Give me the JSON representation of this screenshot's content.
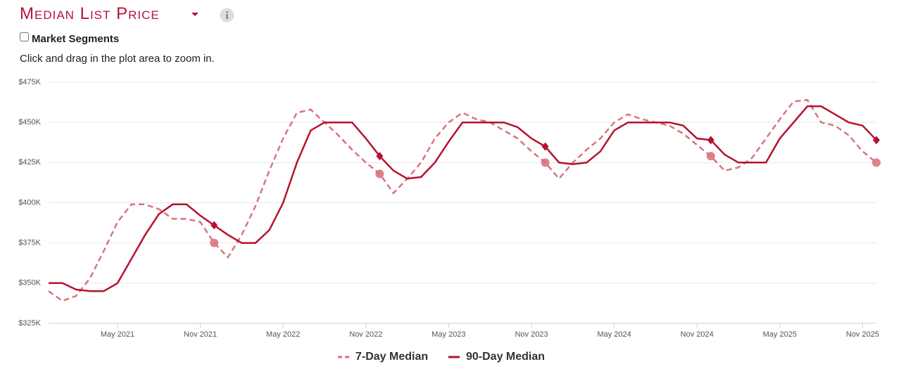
{
  "header": {
    "title": "Median List Price",
    "checkbox_label": "Market Segments",
    "hint": "Click and drag in the plot area to zoom in."
  },
  "chart_data": {
    "type": "line",
    "x": [
      "2020-12",
      "2021-01",
      "2021-02",
      "2021-03",
      "2021-04",
      "2021-05",
      "2021-06",
      "2021-07",
      "2021-08",
      "2021-09",
      "2021-10",
      "2021-11",
      "2021-12",
      "2022-01",
      "2022-02",
      "2022-03",
      "2022-04",
      "2022-05",
      "2022-06",
      "2022-07",
      "2022-08",
      "2022-09",
      "2022-10",
      "2022-11",
      "2022-12",
      "2023-01",
      "2023-02",
      "2023-03",
      "2023-04",
      "2023-05",
      "2023-06",
      "2023-07",
      "2023-08",
      "2023-09",
      "2023-10",
      "2023-11",
      "2023-12",
      "2024-01",
      "2024-02",
      "2024-03",
      "2024-04",
      "2024-05",
      "2024-06",
      "2024-07",
      "2024-08",
      "2024-09",
      "2024-10",
      "2024-11",
      "2024-12",
      "2025-01",
      "2025-02",
      "2025-03",
      "2025-04",
      "2025-05",
      "2025-06",
      "2025-07",
      "2025-08",
      "2025-09",
      "2025-10",
      "2025-11",
      "2025-12"
    ],
    "series": [
      {
        "name": "7-Day Median",
        "color": "#d9737e",
        "dashed": true,
        "marker": "circle",
        "values": [
          345,
          339,
          342,
          353,
          370,
          388,
          399,
          399,
          396,
          390,
          390,
          388,
          375,
          366,
          380,
          398,
          420,
          440,
          456,
          458,
          450,
          442,
          433,
          425,
          418,
          406,
          415,
          425,
          440,
          450,
          456,
          452,
          450,
          445,
          440,
          432,
          425,
          415,
          425,
          433,
          440,
          450,
          455,
          452,
          450,
          448,
          443,
          436,
          429,
          420,
          422,
          428,
          440,
          452,
          463,
          464,
          450,
          448,
          442,
          432,
          425
        ]
      },
      {
        "name": "90-Day Median",
        "color": "#b5122e",
        "dashed": false,
        "marker": "diamond",
        "values": [
          350,
          350,
          346,
          345,
          345,
          350,
          365,
          380,
          393,
          399,
          399,
          392,
          386,
          380,
          375,
          375,
          383,
          400,
          425,
          445,
          450,
          450,
          450,
          440,
          429,
          420,
          415,
          416,
          425,
          438,
          450,
          450,
          450,
          450,
          447,
          440,
          435,
          425,
          424,
          425,
          432,
          445,
          450,
          450,
          450,
          450,
          448,
          440,
          439,
          430,
          425,
          425,
          425,
          440,
          450,
          460,
          460,
          455,
          450,
          448,
          439
        ]
      }
    ],
    "xlim": [
      "2020-12",
      "2025-12"
    ],
    "xticks": [
      {
        "value": "2021-05",
        "label": "May 2021"
      },
      {
        "value": "2021-11",
        "label": "Nov 2021"
      },
      {
        "value": "2022-05",
        "label": "May 2022"
      },
      {
        "value": "2022-11",
        "label": "Nov 2022"
      },
      {
        "value": "2023-05",
        "label": "May 2023"
      },
      {
        "value": "2023-11",
        "label": "Nov 2023"
      },
      {
        "value": "2024-05",
        "label": "May 2024"
      },
      {
        "value": "2024-11",
        "label": "Nov 2024"
      },
      {
        "value": "2025-05",
        "label": "May 2025"
      },
      {
        "value": "2025-11",
        "label": "Nov 2025"
      }
    ],
    "ylim": [
      325,
      475
    ],
    "yticks": [
      {
        "value": 325,
        "label": "$325K"
      },
      {
        "value": 350,
        "label": "$350K"
      },
      {
        "value": 375,
        "label": "$375K"
      },
      {
        "value": 400,
        "label": "$400K"
      },
      {
        "value": 425,
        "label": "$425K"
      },
      {
        "value": 450,
        "label": "$450K"
      },
      {
        "value": 475,
        "label": "$475K"
      }
    ],
    "grid": true,
    "legend": "bottom"
  }
}
